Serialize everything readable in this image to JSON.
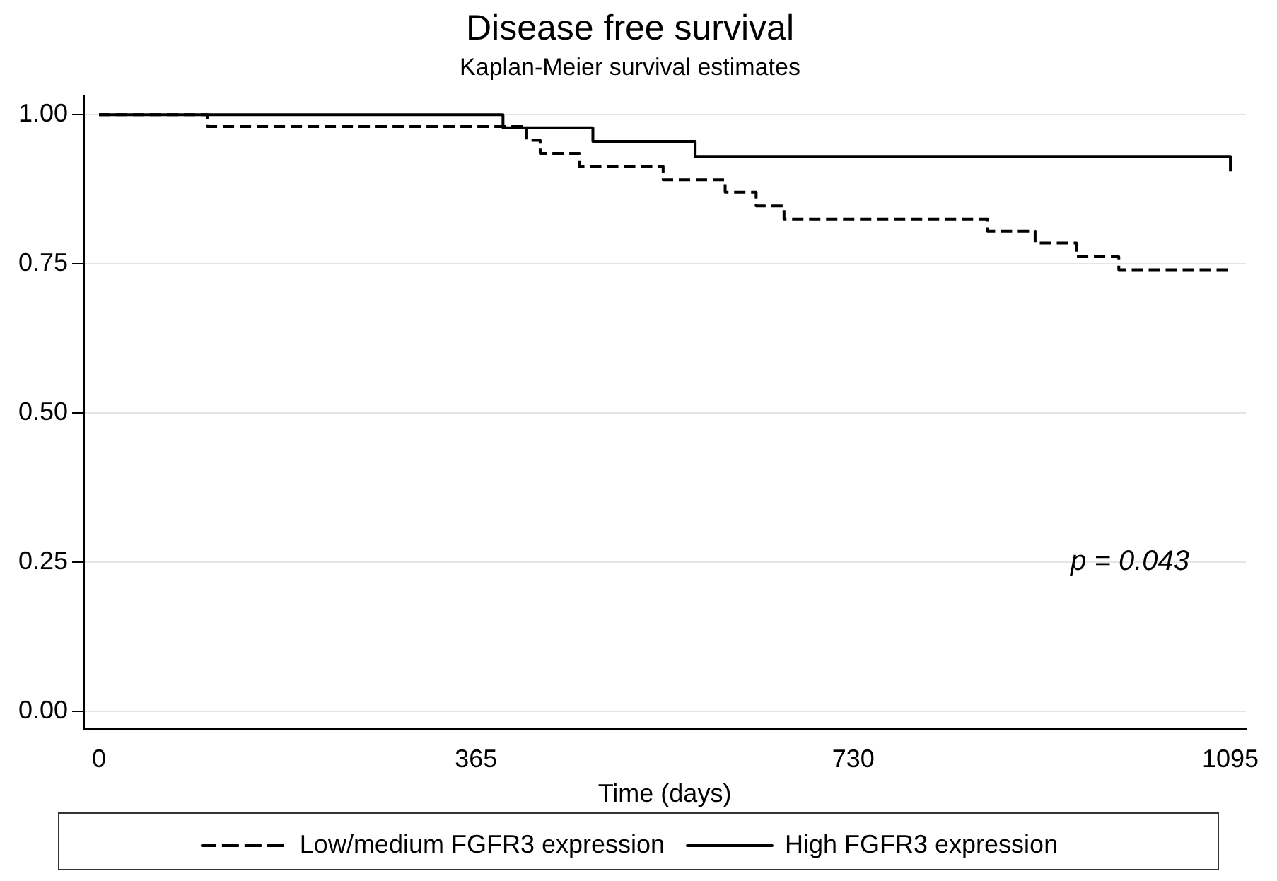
{
  "chart_data": {
    "type": "step",
    "title": "Disease free survival",
    "subtitle": "Kaplan-Meier survival estimates",
    "xlabel": "Time (days)",
    "xlim": [
      -15,
      1110
    ],
    "xticks": [
      0,
      365,
      730,
      1095
    ],
    "ylim": [
      -0.03,
      1.03
    ],
    "yticks": [
      {
        "value": 0,
        "label": "0.00"
      },
      {
        "value": 0.25,
        "label": "0.25"
      },
      {
        "value": 0.5,
        "label": "0.50"
      },
      {
        "value": 0.75,
        "label": "0.75"
      },
      {
        "value": 1,
        "label": "1.00"
      }
    ],
    "grid": "y",
    "legend": "bottom",
    "marker": "none",
    "annotations": [
      "p = 0.043"
    ],
    "series": [
      {
        "name": "Low/medium FGFR3 expression",
        "color": "#000000",
        "line_style": "dashed",
        "x": [
          0,
          105,
          414,
          427,
          465,
          546,
          606,
          636,
          663,
          860,
          906,
          946,
          987,
          1095
        ],
        "values": [
          1,
          0.98,
          0.957,
          0.935,
          0.913,
          0.891,
          0.87,
          0.847,
          0.825,
          0.805,
          0.785,
          0.762,
          0.74,
          0.74
        ]
      },
      {
        "name": "High FGFR3 expression",
        "color": "#000000",
        "line_style": "solid",
        "x": [
          0,
          391,
          478,
          577,
          1095
        ],
        "values": [
          1,
          0.978,
          0.955,
          0.93,
          0.905
        ]
      }
    ]
  }
}
